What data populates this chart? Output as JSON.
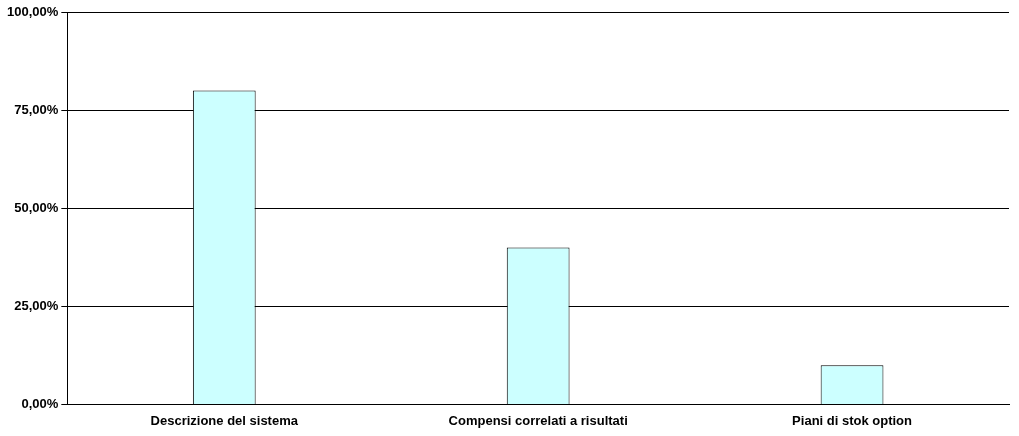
{
  "chart_data": {
    "type": "bar",
    "categories": [
      "Descrizione del sistema",
      "Compensi correlati a risultati",
      "Piani di stok option"
    ],
    "values": [
      80,
      40,
      10
    ],
    "color": "#ccffff",
    "ylim": [
      0,
      100
    ],
    "yticks": [
      {
        "value": 0,
        "label": "0,00%"
      },
      {
        "value": 25,
        "label": "25,00%"
      },
      {
        "value": 50,
        "label": "50,00%"
      },
      {
        "value": 75,
        "label": "75,00%"
      },
      {
        "value": 100,
        "label": "100,00%"
      }
    ],
    "grid": "y",
    "legend": false
  }
}
